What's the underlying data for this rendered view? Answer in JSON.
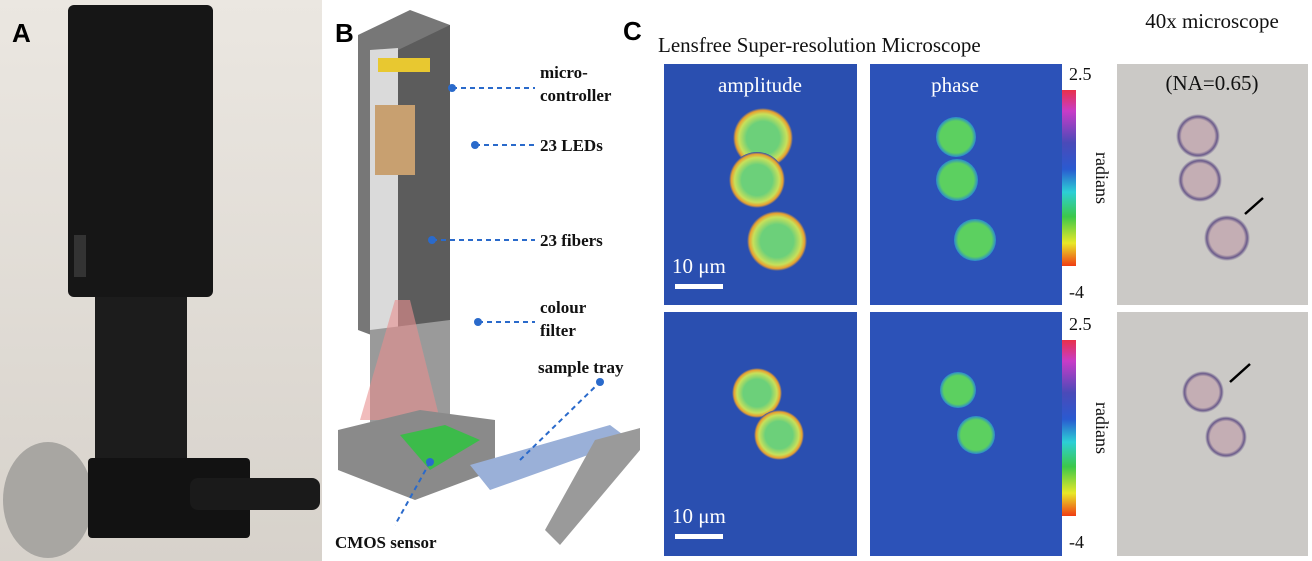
{
  "panel_a": {
    "label": "A"
  },
  "panel_b": {
    "label": "B",
    "callouts": [
      {
        "lines": [
          "micro-",
          "controller"
        ]
      },
      {
        "lines": [
          "23 LEDs"
        ]
      },
      {
        "lines": [
          "23 fibers"
        ]
      },
      {
        "lines": [
          "colour",
          "filter"
        ]
      },
      {
        "lines": [
          "sample tray"
        ]
      },
      {
        "lines": [
          "CMOS sensor"
        ]
      }
    ]
  },
  "panel_c": {
    "label": "C",
    "title": "Lensfree Super-resolution Microscope",
    "columns": [
      "amplitude",
      "phase"
    ],
    "scale_bar": "10 μm",
    "colorbar": {
      "max": 2.5,
      "min": -4,
      "label": "radians"
    },
    "reference": {
      "title": "40x microscope",
      "subtitle": "(NA=0.65)"
    }
  }
}
